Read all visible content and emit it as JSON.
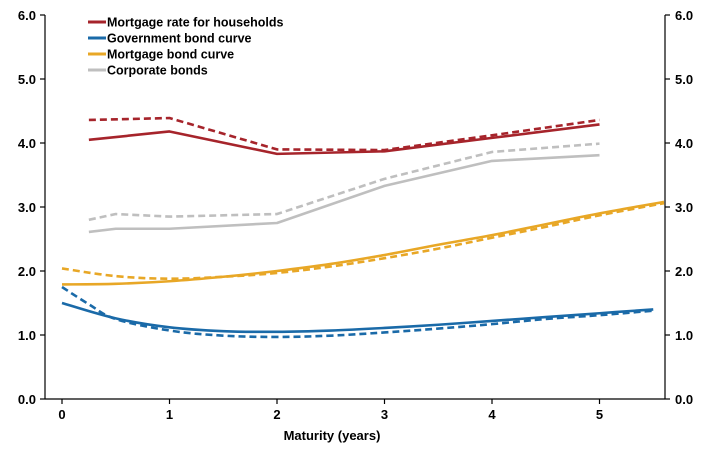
{
  "chart_data": {
    "type": "line",
    "title": "",
    "xlabel": "Maturity (years)",
    "ylabel": "",
    "xlim": [
      0,
      5.6
    ],
    "ylim": [
      0,
      6
    ],
    "x_ticks": [
      "0",
      "1",
      "2",
      "3",
      "4",
      "5"
    ],
    "y_ticks": [
      "0.0",
      "1.0",
      "2.0",
      "3.0",
      "4.0",
      "5.0",
      "6.0"
    ],
    "y_axis_right": true,
    "grid": false,
    "legend_position": "top-left",
    "series": [
      {
        "name": "Mortgage rate for households",
        "color": "#a6242b",
        "style": "solid",
        "x": [
          0.25,
          1.0,
          2.0,
          3.0,
          4.0,
          5.0
        ],
        "y": [
          4.05,
          4.18,
          3.83,
          3.87,
          4.08,
          4.29
        ]
      },
      {
        "name": "",
        "color": "#a6242b",
        "style": "dashed",
        "x": [
          0.25,
          1.0,
          2.0,
          3.0,
          4.0,
          5.0
        ],
        "y": [
          4.36,
          4.39,
          3.9,
          3.89,
          4.12,
          4.36
        ]
      },
      {
        "name": "Government bond curve",
        "color": "#1a6aa8",
        "style": "solid",
        "x": [
          0,
          0.5,
          1.0,
          1.5,
          2.0,
          2.5,
          3.0,
          3.5,
          4.0,
          4.5,
          5.0,
          5.5
        ],
        "y": [
          1.5,
          1.26,
          1.12,
          1.06,
          1.05,
          1.07,
          1.11,
          1.16,
          1.22,
          1.28,
          1.34,
          1.4
        ]
      },
      {
        "name": "",
        "color": "#1a6aa8",
        "style": "dashed",
        "x": [
          0,
          0.25,
          0.5,
          1.0,
          1.5,
          2.0,
          2.5,
          3.0,
          3.5,
          4.0,
          4.5,
          5.0,
          5.5
        ],
        "y": [
          1.75,
          1.48,
          1.25,
          1.07,
          0.99,
          0.97,
          0.99,
          1.04,
          1.1,
          1.17,
          1.25,
          1.31,
          1.38
        ]
      },
      {
        "name": "Mortgage bond curve",
        "color": "#e8a726",
        "style": "solid",
        "x": [
          0,
          0.5,
          1.0,
          1.5,
          2.0,
          2.5,
          3.0,
          3.5,
          4.0,
          4.5,
          5.0,
          5.6
        ],
        "y": [
          1.79,
          1.8,
          1.84,
          1.91,
          2.0,
          2.11,
          2.25,
          2.41,
          2.56,
          2.73,
          2.9,
          3.08
        ]
      },
      {
        "name": "",
        "color": "#e8a726",
        "style": "dashed",
        "x": [
          0,
          0.5,
          1.0,
          1.5,
          2.0,
          2.5,
          3.0,
          3.5,
          4.0,
          4.5,
          5.0,
          5.6
        ],
        "y": [
          2.04,
          1.92,
          1.88,
          1.91,
          1.97,
          2.07,
          2.2,
          2.35,
          2.52,
          2.69,
          2.87,
          3.06
        ]
      },
      {
        "name": "Corporate bonds",
        "color": "#bfbfbf",
        "style": "solid",
        "x": [
          0.25,
          0.5,
          1.0,
          2.0,
          3.0,
          4.0,
          5.0
        ],
        "y": [
          2.61,
          2.66,
          2.66,
          2.75,
          3.33,
          3.72,
          3.81
        ]
      },
      {
        "name": "",
        "color": "#bfbfbf",
        "style": "dashed",
        "x": [
          0.25,
          0.5,
          1.0,
          2.0,
          3.0,
          4.0,
          5.0
        ],
        "y": [
          2.8,
          2.89,
          2.85,
          2.89,
          3.44,
          3.86,
          3.99
        ]
      }
    ]
  }
}
